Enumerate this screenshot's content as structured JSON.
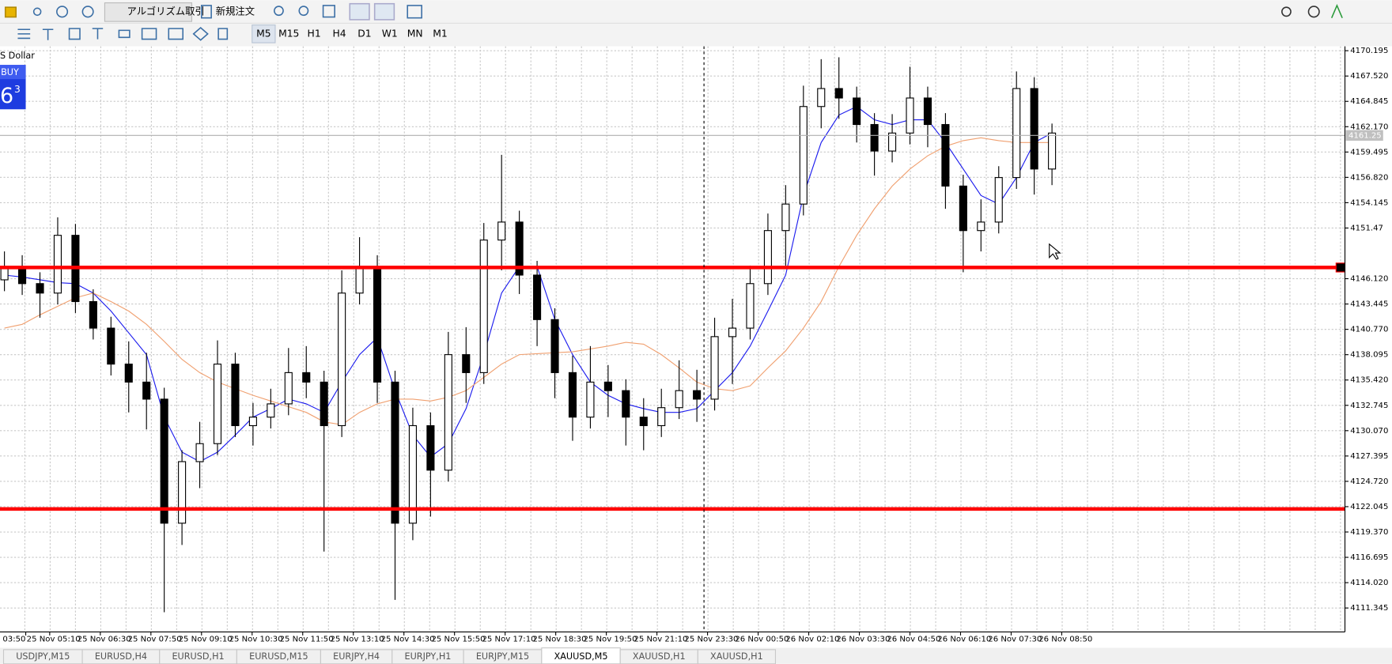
{
  "toolbar": {
    "buttons": [
      "アルゴリズム取引",
      "新規注文"
    ],
    "timeframes": [
      "M5",
      "M15",
      "H1",
      "H4",
      "D1",
      "W1",
      "MN",
      "M1"
    ],
    "active_timeframe": 0
  },
  "chart_data": {
    "type": "candlestick",
    "symbol_label": "S Dollar",
    "trade_panel": {
      "side": "BUY",
      "price_main": "6",
      "price_sup": "3"
    },
    "ylim": [
      4108.82,
      4170.66
    ],
    "yticks": [
      4170.195,
      {
        "value": 4167.52,
        "label": "4167.520"
      },
      4164.845,
      {
        "value": 4162.17,
        "label": "4162.170"
      },
      4159.495,
      {
        "value": 4156.82,
        "label": "4156.820"
      },
      4154.145,
      4151.47,
      {
        "value": 4146.12,
        "label": "4146.120"
      },
      4143.445,
      {
        "value": 4140.77,
        "label": "4140.770"
      },
      4138.095,
      {
        "value": 4135.42,
        "label": "4135.420"
      },
      4132.745,
      {
        "value": 4130.07,
        "label": "4130.070"
      },
      4127.395,
      {
        "value": 4124.72,
        "label": "4124.720"
      },
      4122.045,
      {
        "value": 4119.37,
        "label": "4119.370"
      },
      4116.695,
      {
        "value": 4114.02,
        "label": "4114.020"
      },
      4111.345
    ],
    "grid": true,
    "xlabels": [
      "03:50",
      "25 Nov 05:10",
      "25 Nov 06:30",
      "25 Nov 07:50",
      "25 Nov 09:10",
      "25 Nov 10:30",
      "25 Nov 11:50",
      "25 Nov 13:10",
      "25 Nov 14:30",
      "25 Nov 15:50",
      "25 Nov 17:10",
      "25 Nov 18:30",
      "25 Nov 19:50",
      "25 Nov 21:10",
      "25 Nov 23:30",
      "26 Nov 00:50",
      "26 Nov 02:10",
      "26 Nov 03:30",
      "26 Nov 04:50",
      "26 Nov 06:10",
      "26 Nov 07:30",
      "26 Nov 08:50"
    ],
    "ohlc": [
      [
        4146.0,
        4149.0,
        4144.8,
        4147.4
      ],
      [
        4147.4,
        4148.6,
        4144.4,
        4145.6
      ],
      [
        4145.6,
        4146.8,
        4142.0,
        4144.6
      ],
      [
        4144.6,
        4152.6,
        4143.4,
        4150.7
      ],
      [
        4150.7,
        4151.9,
        4142.5,
        4143.7
      ],
      [
        4143.7,
        4145.0,
        4139.7,
        4140.9
      ],
      [
        4140.9,
        4142.1,
        4135.9,
        4137.1
      ],
      [
        4137.1,
        4139.5,
        4132.0,
        4135.2
      ],
      [
        4135.2,
        4138.3,
        4130.2,
        4133.4
      ],
      [
        4133.4,
        4134.6,
        4110.9,
        4120.3
      ],
      [
        4120.3,
        4128.0,
        4118.0,
        4126.8
      ],
      [
        4126.8,
        4131.0,
        4124.0,
        4128.7
      ],
      [
        4128.7,
        4139.6,
        4127.5,
        4137.1
      ],
      [
        4137.1,
        4138.3,
        4129.4,
        4130.6
      ],
      [
        4130.6,
        4133.0,
        4128.5,
        4131.5
      ],
      [
        4131.5,
        4134.5,
        4130.3,
        4132.9
      ],
      [
        4132.9,
        4138.8,
        4131.7,
        4136.2
      ],
      [
        4136.2,
        4139.0,
        4133.5,
        4135.2
      ],
      [
        4135.2,
        4136.4,
        4117.3,
        4130.6
      ],
      [
        4130.6,
        4147.0,
        4129.4,
        4144.6
      ],
      [
        4144.6,
        4150.5,
        4143.4,
        4147.4
      ],
      [
        4147.4,
        4148.6,
        4133.0,
        4135.2
      ],
      [
        4135.2,
        4136.4,
        4112.2,
        4120.3
      ],
      [
        4120.3,
        4132.5,
        4118.5,
        4130.6
      ],
      [
        4130.6,
        4132.0,
        4121.0,
        4125.9
      ],
      [
        4125.9,
        4140.5,
        4124.7,
        4138.1
      ],
      [
        4138.1,
        4141.0,
        4133.0,
        4136.2
      ],
      [
        4136.2,
        4152.0,
        4135.0,
        4150.2
      ],
      [
        4150.2,
        4159.2,
        4147.0,
        4152.1
      ],
      [
        4152.1,
        4153.3,
        4144.5,
        4146.5
      ],
      [
        4146.5,
        4148.0,
        4139.0,
        4141.8
      ],
      [
        4141.8,
        4143.0,
        4133.5,
        4136.2
      ],
      [
        4136.2,
        4138.0,
        4129.0,
        4131.5
      ],
      [
        4131.5,
        4139.0,
        4130.3,
        4135.2
      ],
      [
        4135.2,
        4137.0,
        4131.5,
        4134.3
      ],
      [
        4134.3,
        4135.5,
        4128.5,
        4131.5
      ],
      [
        4131.5,
        4133.5,
        4128.0,
        4130.6
      ],
      [
        4130.6,
        4134.5,
        4129.4,
        4132.5
      ],
      [
        4132.5,
        4137.5,
        4131.3,
        4134.3
      ],
      [
        4134.3,
        4136.5,
        4131.0,
        4133.4
      ],
      [
        4133.4,
        4142.0,
        4132.2,
        4140.0
      ],
      [
        4140.0,
        4144.0,
        4135.0,
        4140.9
      ],
      [
        4140.9,
        4147.5,
        4139.7,
        4145.6
      ],
      [
        4145.6,
        4153.0,
        4144.4,
        4151.2
      ],
      [
        4151.2,
        4156.0,
        4147.5,
        4154.0
      ],
      [
        4154.0,
        4166.5,
        4152.8,
        4164.3
      ],
      [
        4164.3,
        4169.3,
        4162.0,
        4166.2
      ],
      [
        4166.2,
        4169.5,
        4163.0,
        4165.2
      ],
      [
        4165.2,
        4166.4,
        4160.5,
        4162.4
      ],
      [
        4162.4,
        4163.6,
        4157.0,
        4159.6
      ],
      [
        4159.6,
        4163.5,
        4158.4,
        4161.5
      ],
      [
        4161.5,
        4168.5,
        4160.3,
        4165.2
      ],
      [
        4165.2,
        4166.4,
        4160.0,
        4162.4
      ],
      [
        4162.4,
        4163.6,
        4153.5,
        4155.9
      ],
      [
        4155.9,
        4157.1,
        4146.8,
        4151.2
      ],
      [
        4151.2,
        4154.5,
        4149.0,
        4152.1
      ],
      [
        4152.1,
        4158.0,
        4150.9,
        4156.8
      ],
      [
        4156.8,
        4168.0,
        4155.6,
        4166.2
      ],
      [
        4166.2,
        4167.4,
        4155.0,
        4157.7
      ],
      [
        4157.7,
        4162.5,
        4156.0,
        4161.5
      ]
    ],
    "ma": [
      {
        "color": "#1a1aee",
        "values": [
          4146.5,
          4146.3,
          4146.0,
          4145.7,
          4145.6,
          4144.6,
          4142.7,
          4140.4,
          4138.1,
          4131.5,
          4127.8,
          4126.8,
          4127.8,
          4129.6,
          4131.5,
          4132.4,
          4133.4,
          4132.9,
          4132.0,
          4135.2,
          4138.1,
          4139.9,
          4134.3,
          4129.6,
          4127.3,
          4128.7,
          4132.4,
          4138.1,
          4144.6,
          4147.4,
          4147.4,
          4141.8,
          4138.1,
          4135.2,
          4133.8,
          4132.9,
          4132.4,
          4132.0,
          4132.0,
          4132.4,
          4134.3,
          4136.2,
          4139.0,
          4142.7,
          4146.5,
          4154.9,
          4160.5,
          4163.4,
          4164.3,
          4162.9,
          4162.4,
          4162.9,
          4162.9,
          4160.5,
          4157.7,
          4154.9,
          4154.0,
          4156.8,
          4160.5,
          4161.5
        ]
      },
      {
        "color": "#f0a070",
        "values": [
          4140.9,
          4141.3,
          4142.3,
          4143.2,
          4144.1,
          4144.6,
          4143.7,
          4142.7,
          4141.3,
          4139.5,
          4137.6,
          4136.2,
          4135.2,
          4134.5,
          4133.8,
          4133.2,
          4132.6,
          4132.0,
          4131.0,
          4130.7,
          4132.0,
          4132.9,
          4133.4,
          4133.4,
          4133.2,
          4133.6,
          4134.3,
          4135.7,
          4137.1,
          4138.1,
          4138.2,
          4138.3,
          4138.4,
          4138.7,
          4139.0,
          4139.4,
          4139.2,
          4138.1,
          4136.7,
          4135.2,
          4134.5,
          4134.3,
          4134.8,
          4136.7,
          4138.5,
          4140.9,
          4143.7,
          4147.4,
          4150.7,
          4153.5,
          4155.9,
          4157.7,
          4159.1,
          4160.1,
          4160.7,
          4161.0,
          4160.7,
          4160.5,
          4160.5,
          4160.5
        ]
      }
    ],
    "hlines": [
      {
        "value": 4147.3,
        "color": "#ff0000"
      },
      {
        "value": 4121.8,
        "color": "#ff0000"
      }
    ],
    "current_price": 4161.25
  },
  "tabs": [
    "USDJPY,M15",
    "EURUSD,H4",
    "EURUSD,H1",
    "EURUSD,M15",
    "EURJPY,H4",
    "EURJPY,H1",
    "EURJPY,M15",
    "XAUUSD,M5",
    "XAUUSD,H1",
    "XAUUSD,H1"
  ],
  "active_tab": 7
}
